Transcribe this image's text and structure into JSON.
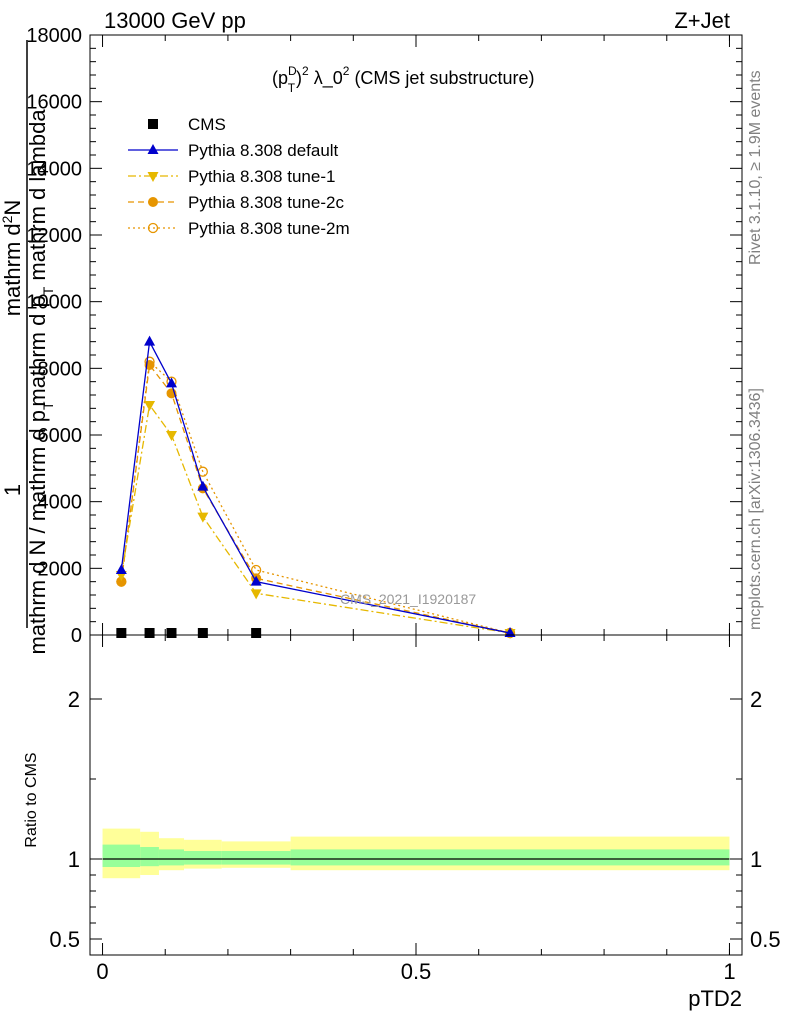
{
  "header": {
    "left": "13000 GeV pp",
    "right": "Z+Jet"
  },
  "side_labels": {
    "rivet": "Rivet 3.1.10, ≥ 1.9M events",
    "mcplots": "mcplots.cern.ch [arXiv:1306.3436]"
  },
  "watermark": "CMS_2021_I1920187",
  "colors": {
    "cms": "#000000",
    "default": "#0000cc",
    "tune1": "#e6b800",
    "tune2c": "#e69500",
    "tune2m": "#e69500",
    "band_inner": "#99ff99",
    "band_outer": "#ffff99"
  },
  "chart_data": [
    {
      "type": "line",
      "title": "(p_T^D)^2 λ_0^2 (CMS jet substructure)",
      "title_parts": {
        "open": "(p",
        "sup": "D",
        "sub": "T",
        "close": ")",
        "sup2": "2",
        "lambda": " λ_0",
        "sup3": "2",
        "rest": " (CMS jet substructure)"
      },
      "ylabel": "1 / mathrm d N / mathrm d p_T mathrm d N / mathrm d p_T mathrm d lambda",
      "ylabel_parts": {
        "numer": "mathrm d²N",
        "denom_top": "mathrm d p",
        "denom_sub": "T",
        "denom_rest": " mathrm d lambda",
        "one": "1",
        "lower": "mathrm d N / mathrm d p",
        "lower_sub": "T"
      },
      "xlim": [
        -0.02,
        1.02
      ],
      "ylim": [
        0,
        18000
      ],
      "yticks": [
        0,
        2000,
        4000,
        6000,
        8000,
        10000,
        12000,
        14000,
        16000,
        18000
      ],
      "ytick_labels": [
        "0",
        "2000",
        "4000",
        "6000",
        "8000",
        "10000",
        "12000",
        "14000",
        "16000",
        "18000"
      ],
      "legend_position": "top-left",
      "series": [
        {
          "name": "CMS",
          "key": "cms",
          "marker": "square",
          "x": [
            0.03,
            0.075,
            0.11,
            0.16,
            0.245,
            0.65
          ],
          "y": [
            60,
            60,
            60,
            60,
            60,
            0
          ]
        },
        {
          "name": "Pythia 8.308 default",
          "key": "default",
          "marker": "triangle-up",
          "dash": "",
          "x": [
            0.03,
            0.075,
            0.11,
            0.16,
            0.245,
            0.65
          ],
          "y": [
            1950,
            8800,
            7550,
            4450,
            1600,
            60
          ]
        },
        {
          "name": "Pythia 8.308 tune-1",
          "key": "tune1",
          "marker": "triangle-down",
          "dash": "8,3,2,3",
          "x": [
            0.03,
            0.075,
            0.11,
            0.16,
            0.245,
            0.65
          ],
          "y": [
            1800,
            6900,
            6000,
            3550,
            1250,
            60
          ]
        },
        {
          "name": "Pythia 8.308 tune-2c",
          "key": "tune2c",
          "marker": "circle",
          "dash": "6,4",
          "x": [
            0.03,
            0.075,
            0.11,
            0.16,
            0.245,
            0.65
          ],
          "y": [
            1600,
            8100,
            7250,
            4400,
            1700,
            60
          ]
        },
        {
          "name": "Pythia 8.308 tune-2m",
          "key": "tune2m",
          "marker": "circle-open",
          "dash": "2,3",
          "x": [
            0.03,
            0.075,
            0.11,
            0.16,
            0.245,
            0.65
          ],
          "y": [
            1600,
            8200,
            7600,
            4900,
            1950,
            60
          ]
        }
      ]
    },
    {
      "type": "line",
      "ylabel": "Ratio to CMS",
      "xlabel": "pTD2",
      "xlim": [
        -0.02,
        1.02
      ],
      "ylim": [
        0.4,
        2.4
      ],
      "yticks": [
        0.5,
        1,
        2
      ],
      "ytick_labels": [
        "0.5",
        "1",
        "2"
      ],
      "xticks": [
        0,
        0.5,
        1
      ],
      "xtick_labels": [
        "0",
        "0.5",
        "1"
      ],
      "reference_line": 1,
      "bands": {
        "edges": [
          0,
          0.06,
          0.09,
          0.13,
          0.19,
          0.3,
          1.0
        ],
        "inner_low": [
          0.95,
          0.955,
          0.96,
          0.965,
          0.965,
          0.96
        ],
        "inner_high": [
          1.09,
          1.075,
          1.06,
          1.05,
          1.05,
          1.06
        ],
        "outer_low": [
          0.88,
          0.9,
          0.93,
          0.94,
          0.945,
          0.93
        ],
        "outer_high": [
          1.19,
          1.17,
          1.13,
          1.12,
          1.11,
          1.14
        ]
      }
    }
  ]
}
